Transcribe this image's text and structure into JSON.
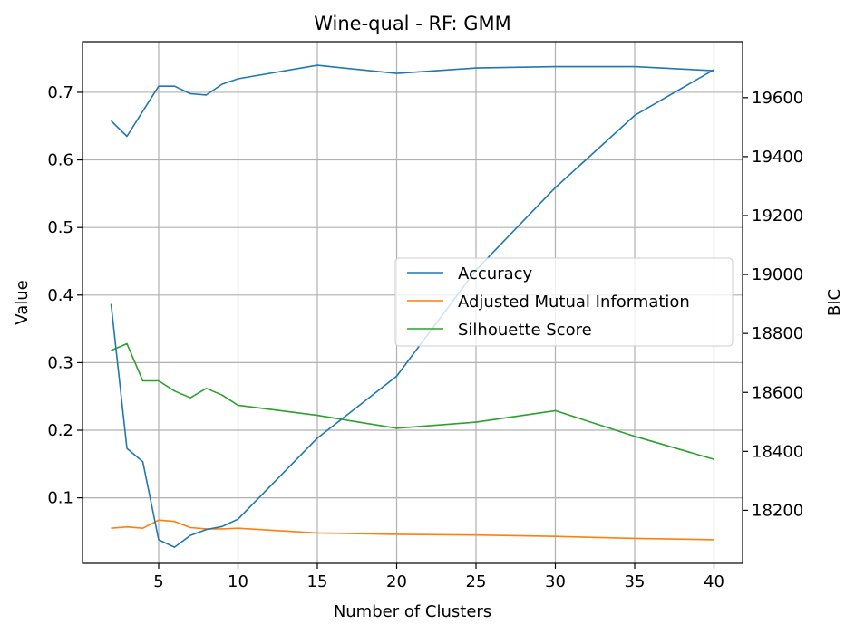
{
  "chart_data": {
    "type": "line",
    "title": "Wine-qual - RF: GMM",
    "xlabel": "Number of Clusters",
    "ylabel": "Value",
    "y2label": "BIC",
    "xlim": [
      0.2,
      41.8
    ],
    "ylim": [
      0.003,
      0.775
    ],
    "y2lim": [
      18020,
      19790
    ],
    "xticks": [
      5,
      10,
      15,
      20,
      25,
      30,
      35,
      40
    ],
    "yticks": [
      0.1,
      0.2,
      0.3,
      0.4,
      0.5,
      0.6,
      0.7
    ],
    "y2ticks": [
      18200,
      18400,
      18600,
      18800,
      19000,
      19200,
      19400,
      19600
    ],
    "grid": true,
    "legend_position": "center-right",
    "x": [
      2,
      3,
      4,
      5,
      6,
      7,
      8,
      9,
      10,
      15,
      20,
      25,
      30,
      35,
      40
    ],
    "series": [
      {
        "name": "Accuracy",
        "axis": "left",
        "color": "#1f77b4",
        "values": [
          0.658,
          0.635,
          0.672,
          0.709,
          0.709,
          0.698,
          0.696,
          0.712,
          0.72,
          0.74,
          0.728,
          0.736,
          0.738,
          0.738,
          0.732
        ]
      },
      {
        "name": "Adjusted Mutual Information",
        "axis": "left",
        "color": "#ff7f0e",
        "values": [
          0.055,
          0.057,
          0.055,
          0.067,
          0.065,
          0.056,
          0.054,
          0.054,
          0.055,
          0.048,
          0.046,
          0.045,
          0.043,
          0.04,
          0.038
        ]
      },
      {
        "name": "Silhouette Score",
        "axis": "left",
        "color": "#2ca02c",
        "values": [
          0.318,
          0.328,
          0.273,
          0.273,
          0.258,
          0.248,
          0.262,
          0.252,
          0.237,
          0.222,
          0.203,
          0.212,
          0.229,
          0.191,
          0.157
        ]
      },
      {
        "name": "BIC",
        "axis": "right",
        "color": "#1f77b4",
        "values": [
          18900,
          18410,
          18365,
          18100,
          18075,
          18115,
          18135,
          18145,
          18170,
          18445,
          18655,
          19015,
          19295,
          19540,
          19695
        ]
      }
    ]
  }
}
